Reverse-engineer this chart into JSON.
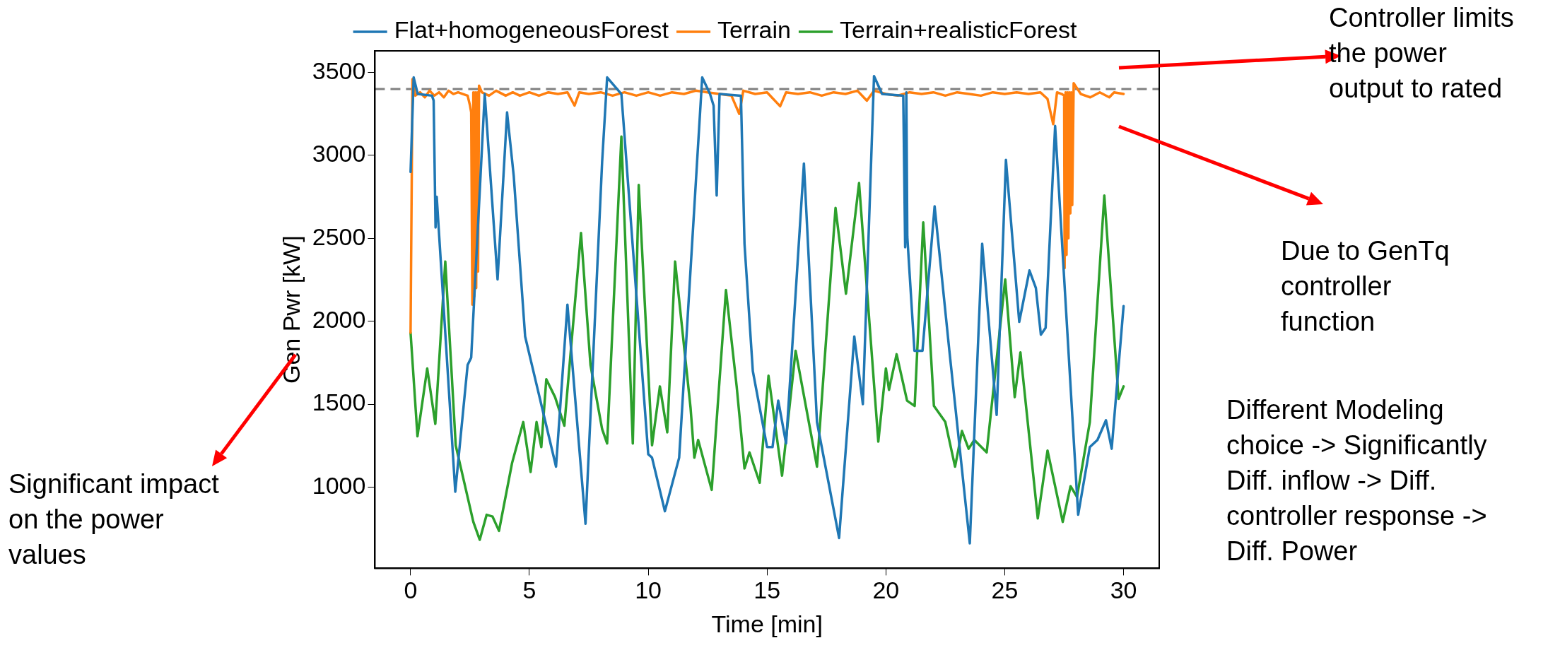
{
  "chart_data": {
    "type": "line",
    "xlabel": "Time [min]",
    "ylabel": "Gen Pwr [kW]",
    "xlim": [
      -1.5,
      31.5
    ],
    "xticks": [
      0,
      5,
      10,
      15,
      20,
      25,
      30
    ],
    "ylim": [
      510,
      3630
    ],
    "yticks": [
      1000,
      1500,
      2000,
      2500,
      3000,
      3500
    ],
    "grid": false,
    "legend": "top",
    "marker": "none",
    "line_style": "solid",
    "ref_lines": [
      {
        "axis": "y",
        "value": 3400,
        "label": null,
        "color": "#808080",
        "line_style": "dashed"
      }
    ],
    "annotations": [
      "Controller limits the power output to rated",
      "Due to GenTq controller function",
      "Different Modeling choice -> Significantly Diff. inflow -> Diff. controller response -> Diff. Power",
      "Significant impact on the power values"
    ],
    "series": [
      {
        "name": "Flat+homogeneousForest",
        "color": "#1f77b4",
        "x": [
          0,
          0.13,
          0.3,
          0.9,
          0.97,
          1.05,
          1.1,
          1.88,
          2.4,
          2.55,
          3.12,
          3.66,
          4.06,
          4.34,
          4.82,
          6.12,
          6.6,
          7.36,
          8.06,
          8.27,
          8.87,
          10.0,
          10.16,
          10.7,
          11.3,
          12.27,
          12.6,
          12.75,
          12.88,
          13.0,
          13.9,
          14.05,
          14.4,
          15.0,
          15.23,
          15.47,
          15.8,
          16.55,
          17.1,
          18.03,
          18.67,
          19.03,
          19.5,
          19.84,
          20.73,
          20.81,
          20.86,
          20.9,
          21.2,
          21.54,
          22.05,
          22.67,
          23.53,
          24.05,
          24.66,
          25.05,
          25.61,
          26.04,
          26.31,
          26.52,
          26.72,
          27.12,
          28.09,
          28.58,
          28.9,
          29.26,
          29.5,
          30.0
        ],
        "values": [
          2900,
          3470,
          3370,
          3360,
          3330,
          2565,
          2750,
          972,
          1736,
          1780,
          3370,
          2252,
          3259,
          2876,
          1908,
          1123,
          2100,
          779,
          2962,
          3470,
          3370,
          1198,
          1177,
          854,
          1177,
          3470,
          3370,
          3300,
          2758,
          3370,
          3360,
          2467,
          1700,
          1241,
          1241,
          1521,
          1263,
          2951,
          1392,
          693,
          1908,
          1500,
          3478,
          3370,
          3360,
          2446,
          3380,
          2510,
          1822,
          1822,
          2693,
          1822,
          661,
          2467,
          1435,
          2973,
          1996,
          2306,
          2200,
          1919,
          1960,
          3177,
          833,
          1241,
          1284,
          1403,
          1231,
          2091
        ]
      },
      {
        "name": "Terrain",
        "color": "#ff7f0e",
        "x": [
          0,
          0.08,
          0.2,
          0.4,
          0.6,
          0.8,
          1.0,
          1.2,
          1.4,
          1.6,
          1.8,
          2.0,
          2.2,
          2.4,
          2.5,
          2.55,
          2.6,
          2.64,
          2.68,
          2.72,
          2.76,
          2.8,
          2.84,
          2.88,
          3.0,
          3.3,
          3.6,
          4.0,
          4.3,
          4.6,
          5.0,
          5.4,
          5.8,
          6.2,
          6.6,
          6.9,
          7.1,
          7.5,
          8.0,
          8.5,
          9.0,
          9.5,
          10.0,
          10.5,
          11.0,
          11.5,
          12.0,
          12.5,
          13.0,
          13.5,
          13.83,
          14.0,
          14.5,
          15.0,
          15.55,
          15.8,
          16.3,
          16.8,
          17.3,
          17.8,
          18.3,
          18.8,
          19.2,
          19.5,
          20.0,
          20.5,
          21.0,
          21.5,
          22.0,
          22.5,
          23.0,
          23.5,
          24.0,
          24.5,
          25.0,
          25.5,
          26.0,
          26.5,
          26.8,
          27.04,
          27.2,
          27.4,
          27.5,
          27.52,
          27.56,
          27.6,
          27.64,
          27.68,
          27.72,
          27.76,
          27.8,
          27.84,
          27.9,
          28.2,
          28.6,
          29.0,
          29.4,
          29.6,
          30.0
        ],
        "values": [
          1930,
          3460,
          3360,
          3380,
          3350,
          3390,
          3360,
          3380,
          3350,
          3390,
          3370,
          3380,
          3370,
          3360,
          3300,
          3260,
          2100,
          3380,
          2150,
          3380,
          2200,
          3380,
          2300,
          3420,
          3380,
          3360,
          3390,
          3360,
          3380,
          3360,
          3380,
          3360,
          3380,
          3370,
          3380,
          3300,
          3380,
          3370,
          3380,
          3360,
          3380,
          3360,
          3380,
          3360,
          3380,
          3370,
          3390,
          3380,
          3370,
          3360,
          3250,
          3390,
          3370,
          3380,
          3296,
          3380,
          3370,
          3380,
          3360,
          3380,
          3370,
          3390,
          3330,
          3390,
          3370,
          3360,
          3380,
          3370,
          3380,
          3360,
          3380,
          3370,
          3360,
          3380,
          3370,
          3380,
          3370,
          3380,
          3340,
          3188,
          3380,
          3370,
          3360,
          2320,
          3380,
          2400,
          3380,
          2500,
          3380,
          2650,
          3380,
          2700,
          3435,
          3370,
          3350,
          3380,
          3350,
          3380,
          3370
        ]
      },
      {
        "name": "Terrain+realisticForest",
        "color": "#2ca02c",
        "x": [
          0,
          0.29,
          0.7,
          1.04,
          1.46,
          1.9,
          2.64,
          2.91,
          3.2,
          3.45,
          3.72,
          4.27,
          4.74,
          5.05,
          5.3,
          5.5,
          5.71,
          6.08,
          6.47,
          7.17,
          7.57,
          8.06,
          8.27,
          8.87,
          9.35,
          9.6,
          10.16,
          10.49,
          10.8,
          11.13,
          11.78,
          11.94,
          12.1,
          12.67,
          13.27,
          13.72,
          14.05,
          14.26,
          14.69,
          15.06,
          15.63,
          16.2,
          16.84,
          17.1,
          17.88,
          18.32,
          18.87,
          19.68,
          20.0,
          20.13,
          20.45,
          20.89,
          21.21,
          21.57,
          22.02,
          22.5,
          22.91,
          23.2,
          23.48,
          23.72,
          24.24,
          25.02,
          25.42,
          25.66,
          26.39,
          26.8,
          27.44,
          27.77,
          28.04,
          28.58,
          29.19,
          29.79,
          30.0
        ],
        "values": [
          1930,
          1306,
          1715,
          1381,
          2360,
          1250,
          790,
          682,
          833,
          822,
          736,
          1145,
          1392,
          1091,
          1392,
          1241,
          1650,
          1542,
          1370,
          2532,
          1736,
          1349,
          1263,
          3113,
          1263,
          2822,
          1252,
          1607,
          1330,
          2360,
          1478,
          1177,
          1284,
          983,
          2188,
          1607,
          1112,
          1209,
          1026,
          1671,
          1069,
          1822,
          1327,
          1123,
          2683,
          2166,
          2833,
          1274,
          1715,
          1586,
          1801,
          1521,
          1489,
          2596,
          1489,
          1392,
          1123,
          1338,
          1231,
          1284,
          1209,
          2252,
          1542,
          1812,
          811,
          1220,
          790,
          1005,
          941,
          1392,
          2758,
          1532,
          1607
        ]
      }
    ]
  }
}
